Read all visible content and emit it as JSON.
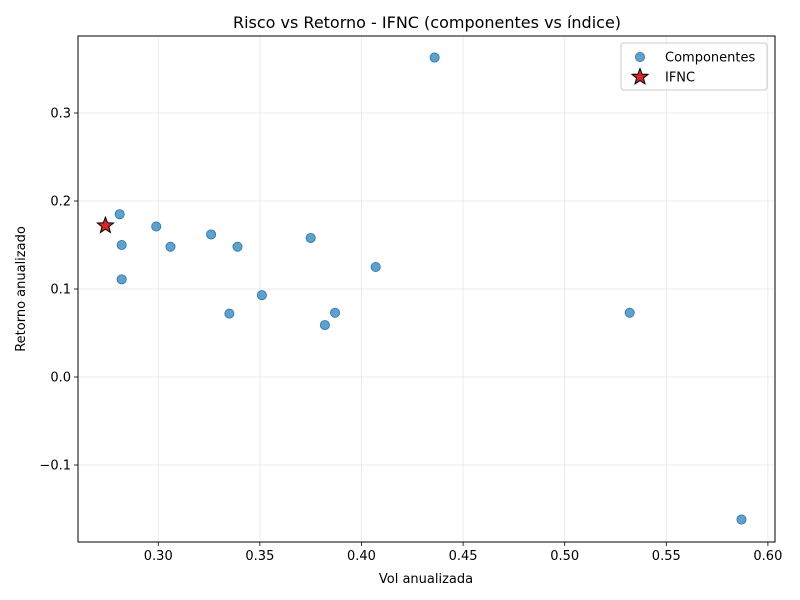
{
  "chart_data": {
    "type": "scatter",
    "title": "Risco vs Retorno - IFNC (componentes vs índice)",
    "xlabel": "Vol anualizada",
    "ylabel": "Retorno anualizado",
    "xlim": [
      0.2605,
      0.6035
    ],
    "ylim": [
      -0.1875,
      0.3875
    ],
    "xticks": [
      0.3,
      0.35,
      0.4,
      0.45,
      0.5,
      0.55,
      0.6
    ],
    "xtick_labels": [
      "0.30",
      "0.35",
      "0.40",
      "0.45",
      "0.50",
      "0.55",
      "0.60"
    ],
    "yticks": [
      -0.1,
      0.0,
      0.1,
      0.2,
      0.3
    ],
    "ytick_labels": [
      "−0.1",
      "0.0",
      "0.1",
      "0.2",
      "0.3"
    ],
    "grid": true,
    "legend_position": "top-right",
    "series": [
      {
        "name": "Componentes",
        "marker": "circle",
        "color": "#1f77b4",
        "points": [
          {
            "x": 0.436,
            "y": 0.363
          },
          {
            "x": 0.281,
            "y": 0.185
          },
          {
            "x": 0.299,
            "y": 0.171
          },
          {
            "x": 0.326,
            "y": 0.162
          },
          {
            "x": 0.375,
            "y": 0.158
          },
          {
            "x": 0.282,
            "y": 0.15
          },
          {
            "x": 0.306,
            "y": 0.148
          },
          {
            "x": 0.339,
            "y": 0.148
          },
          {
            "x": 0.407,
            "y": 0.125
          },
          {
            "x": 0.282,
            "y": 0.111
          },
          {
            "x": 0.351,
            "y": 0.093
          },
          {
            "x": 0.335,
            "y": 0.072
          },
          {
            "x": 0.387,
            "y": 0.073
          },
          {
            "x": 0.382,
            "y": 0.059
          },
          {
            "x": 0.532,
            "y": 0.073
          },
          {
            "x": 0.587,
            "y": -0.162
          }
        ]
      },
      {
        "name": "IFNC",
        "marker": "star",
        "color": "#d62728",
        "points": [
          {
            "x": 0.274,
            "y": 0.172
          }
        ]
      }
    ]
  }
}
